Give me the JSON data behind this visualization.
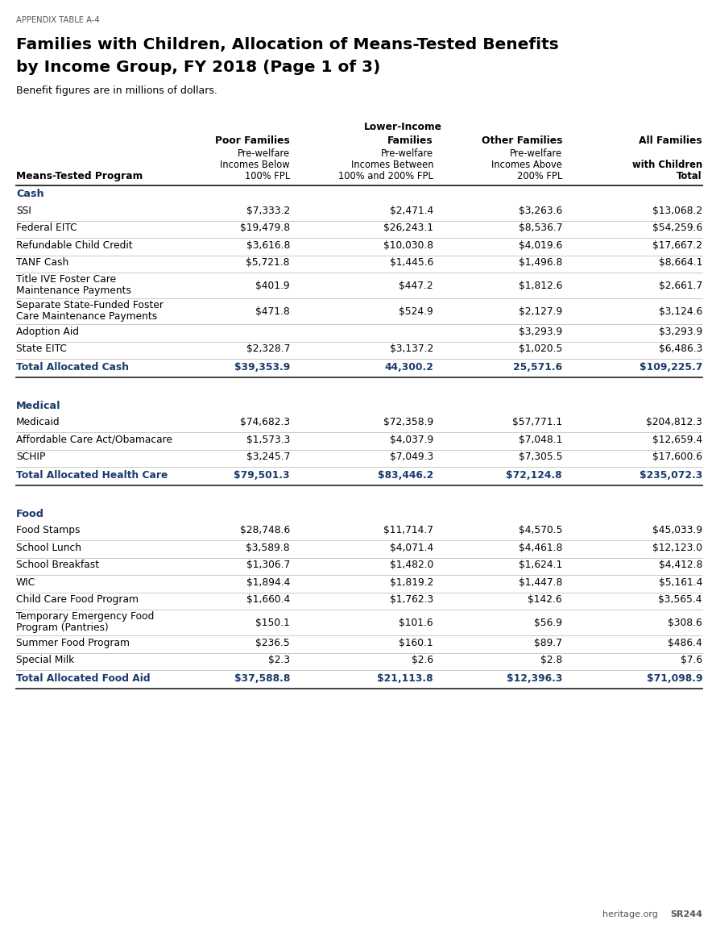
{
  "appendix_label": "APPENDIX TABLE A-4",
  "title_line1": "Families with Children, Allocation of Means-Tested Benefits",
  "title_line2": "by Income Group, FY 2018 (Page 1 of 3)",
  "subtitle": "Benefit figures are in millions of dollars.",
  "sections": [
    {
      "section_name": "Cash",
      "rows": [
        [
          "SSI",
          "$7,333.2",
          "$2,471.4",
          "$3,263.6",
          "$13,068.2"
        ],
        [
          "Federal EITC",
          "$19,479.8",
          "$26,243.1",
          "$8,536.7",
          "$54,259.6"
        ],
        [
          "Refundable Child Credit",
          "$3,616.8",
          "$10,030.8",
          "$4,019.6",
          "$17,667.2"
        ],
        [
          "TANF Cash",
          "$5,721.8",
          "$1,445.6",
          "$1,496.8",
          "$8,664.1"
        ],
        [
          "Title IVE Foster Care\nMaintenance Payments",
          "$401.9",
          "$447.2",
          "$1,812.6",
          "$2,661.7"
        ],
        [
          "Separate State-Funded Foster\nCare Maintenance Payments",
          "$471.8",
          "$524.9",
          "$2,127.9",
          "$3,124.6"
        ],
        [
          "Adoption Aid",
          "",
          "",
          "$3,293.9",
          "$3,293.9"
        ],
        [
          "State EITC",
          "$2,328.7",
          "$3,137.2",
          "$1,020.5",
          "$6,486.3"
        ]
      ],
      "total_row": [
        "Total Allocated Cash",
        "$39,353.9",
        "44,300.2",
        "25,571.6",
        "$109,225.7"
      ]
    },
    {
      "section_name": "Medical",
      "rows": [
        [
          "Medicaid",
          "$74,682.3",
          "$72,358.9",
          "$57,771.1",
          "$204,812.3"
        ],
        [
          "Affordable Care Act/Obamacare",
          "$1,573.3",
          "$4,037.9",
          "$7,048.1",
          "$12,659.4"
        ],
        [
          "SCHIP",
          "$3,245.7",
          "$7,049.3",
          "$7,305.5",
          "$17,600.6"
        ]
      ],
      "total_row": [
        "Total Allocated Health Care",
        "$79,501.3",
        "$83,446.2",
        "$72,124.8",
        "$235,072.3"
      ]
    },
    {
      "section_name": "Food",
      "rows": [
        [
          "Food Stamps",
          "$28,748.6",
          "$11,714.7",
          "$4,570.5",
          "$45,033.9"
        ],
        [
          "School Lunch",
          "$3,589.8",
          "$4,071.4",
          "$4,461.8",
          "$12,123.0"
        ],
        [
          "School Breakfast",
          "$1,306.7",
          "$1,482.0",
          "$1,624.1",
          "$4,412.8"
        ],
        [
          "WIC",
          "$1,894.4",
          "$1,819.2",
          "$1,447.8",
          "$5,161.4"
        ],
        [
          "Child Care Food Program",
          "$1,660.4",
          "$1,762.3",
          "$142.6",
          "$3,565.4"
        ],
        [
          "Temporary Emergency Food\nProgram (Pantries)",
          "$150.1",
          "$101.6",
          "$56.9",
          "$308.6"
        ],
        [
          "Summer Food Program",
          "$236.5",
          "$160.1",
          "$89.7",
          "$486.4"
        ],
        [
          "Special Milk",
          "$2.3",
          "$2.6",
          "$2.8",
          "$7.6"
        ]
      ],
      "total_row": [
        "Total Allocated Food Aid",
        "$37,588.8",
        "$21,113.8",
        "$12,396.3",
        "$71,098.9"
      ]
    }
  ],
  "bg_color": "#ffffff",
  "text_color": "#000000",
  "section_color": "#1a3a6b",
  "total_color": "#1a3a6b",
  "row_line_color": "#bbbbbb",
  "section_line_color": "#333333"
}
